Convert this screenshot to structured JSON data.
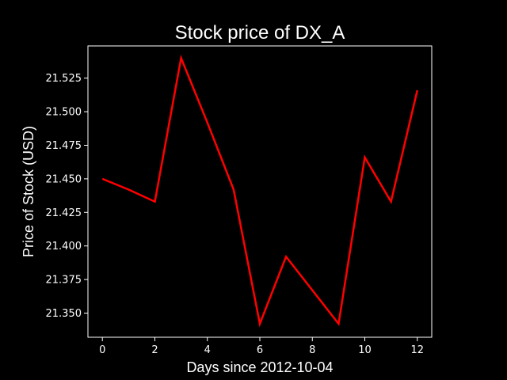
{
  "chart_data": {
    "type": "line",
    "title": "Stock price of DX_A",
    "xlabel": "Days since 2012-10-04",
    "ylabel": "Price of Stock (USD)",
    "xlim": [
      -0.55,
      12.55
    ],
    "ylim": [
      21.332,
      21.549
    ],
    "xticks": [
      0,
      2,
      4,
      6,
      8,
      10,
      12
    ],
    "xtick_labels": [
      "0",
      "2",
      "4",
      "6",
      "8",
      "10",
      "12"
    ],
    "yticks": [
      21.35,
      21.375,
      21.4,
      21.425,
      21.45,
      21.475,
      21.5,
      21.525
    ],
    "ytick_labels": [
      "21.350",
      "21.375",
      "21.400",
      "21.425",
      "21.450",
      "21.475",
      "21.500",
      "21.525"
    ],
    "grid": false,
    "background": "#000000",
    "series": [
      {
        "color": "#ff0000",
        "x": [
          0,
          1,
          2,
          3,
          4,
          5,
          6,
          7,
          8,
          9,
          10,
          11,
          12
        ],
        "y": [
          21.45,
          21.442,
          21.433,
          21.54,
          21.492,
          21.442,
          21.342,
          21.392,
          21.367,
          21.342,
          21.466,
          21.433,
          21.516
        ]
      }
    ]
  }
}
